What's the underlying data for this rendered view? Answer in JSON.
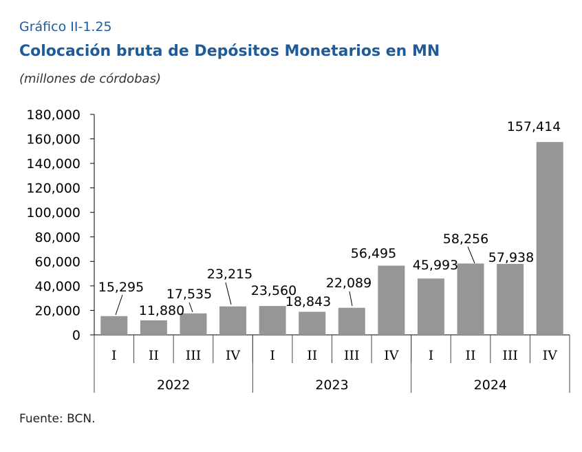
{
  "header": {
    "label": "Gráfico II-1.25",
    "title": "Colocación bruta de Depósitos Monetarios en MN",
    "unit": "(millones de córdobas)"
  },
  "footer": {
    "source": "Fuente: BCN."
  },
  "colors": {
    "bar": "#969696",
    "title": "#1f5b99",
    "axis": "#000000"
  },
  "chart_data": {
    "type": "bar",
    "categories": [
      "I",
      "II",
      "III",
      "IV",
      "I",
      "II",
      "III",
      "IV",
      "I",
      "II",
      "III",
      "IV"
    ],
    "groups": [
      {
        "name": "2022",
        "quarters": 4
      },
      {
        "name": "2023",
        "quarters": 4
      },
      {
        "name": "2024",
        "quarters": 4
      }
    ],
    "values": [
      15295,
      11880,
      17535,
      23215,
      23560,
      18843,
      22089,
      56495,
      45993,
      58256,
      57938,
      157414
    ],
    "data_labels": [
      "15,295",
      "11,880",
      "17,535",
      "23,215",
      "23,560",
      "18,843",
      "22,089",
      "56,495",
      "45,993",
      "58,256",
      "57,938",
      "157,414"
    ],
    "yticks": [
      "0",
      "20,000",
      "40,000",
      "60,000",
      "80,000",
      "100,000",
      "120,000",
      "140,000",
      "160,000",
      "180,000"
    ],
    "ylim": [
      0,
      180000
    ],
    "grid": false,
    "legend": "none"
  }
}
